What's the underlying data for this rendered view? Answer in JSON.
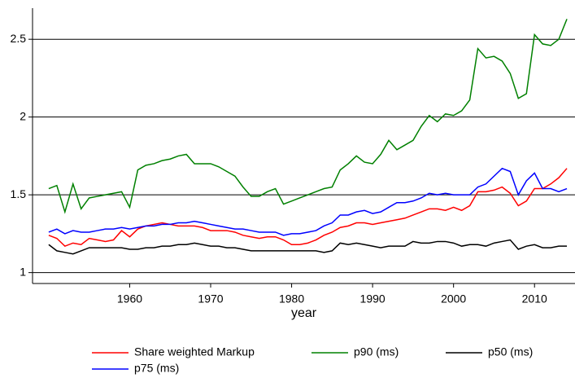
{
  "chart_data": {
    "type": "line",
    "xlabel": "year",
    "x": [
      1950,
      1951,
      1952,
      1953,
      1954,
      1955,
      1956,
      1957,
      1958,
      1959,
      1960,
      1961,
      1962,
      1963,
      1964,
      1965,
      1966,
      1967,
      1968,
      1969,
      1970,
      1971,
      1972,
      1973,
      1974,
      1975,
      1976,
      1977,
      1978,
      1979,
      1980,
      1981,
      1982,
      1983,
      1984,
      1985,
      1986,
      1987,
      1988,
      1989,
      1990,
      1991,
      1992,
      1993,
      1994,
      1995,
      1996,
      1997,
      1998,
      1999,
      2000,
      2001,
      2002,
      2003,
      2004,
      2005,
      2006,
      2007,
      2008,
      2009,
      2010,
      2011,
      2012,
      2013,
      2014
    ],
    "series": [
      {
        "name": "Share weighted Markup",
        "color": "#ff0000",
        "values": [
          1.24,
          1.22,
          1.17,
          1.19,
          1.18,
          1.22,
          1.21,
          1.2,
          1.21,
          1.27,
          1.23,
          1.28,
          1.3,
          1.31,
          1.32,
          1.31,
          1.3,
          1.3,
          1.3,
          1.29,
          1.27,
          1.27,
          1.27,
          1.26,
          1.24,
          1.23,
          1.22,
          1.23,
          1.23,
          1.21,
          1.18,
          1.18,
          1.19,
          1.21,
          1.24,
          1.26,
          1.29,
          1.3,
          1.32,
          1.32,
          1.31,
          1.32,
          1.33,
          1.34,
          1.35,
          1.37,
          1.39,
          1.41,
          1.41,
          1.4,
          1.42,
          1.4,
          1.43,
          1.52,
          1.52,
          1.53,
          1.55,
          1.51,
          1.43,
          1.46,
          1.54,
          1.54,
          1.57,
          1.61,
          1.67
        ]
      },
      {
        "name": "p90 (ms)",
        "color": "#008000",
        "values": [
          1.54,
          1.56,
          1.39,
          1.57,
          1.41,
          1.48,
          1.49,
          1.5,
          1.51,
          1.52,
          1.42,
          1.66,
          1.69,
          1.7,
          1.72,
          1.73,
          1.75,
          1.76,
          1.7,
          1.7,
          1.7,
          1.68,
          1.65,
          1.62,
          1.55,
          1.49,
          1.49,
          1.52,
          1.54,
          1.44,
          1.46,
          1.48,
          1.5,
          1.52,
          1.54,
          1.55,
          1.66,
          1.7,
          1.75,
          1.71,
          1.7,
          1.76,
          1.85,
          1.79,
          1.82,
          1.85,
          1.94,
          2.01,
          1.97,
          2.02,
          2.01,
          2.04,
          2.11,
          2.44,
          2.38,
          2.39,
          2.36,
          2.28,
          2.12,
          2.15,
          2.53,
          2.47,
          2.46,
          2.5,
          2.63
        ]
      },
      {
        "name": "p50 (ms)",
        "color": "#000000",
        "values": [
          1.18,
          1.14,
          1.13,
          1.12,
          1.14,
          1.16,
          1.16,
          1.16,
          1.16,
          1.16,
          1.15,
          1.15,
          1.16,
          1.16,
          1.17,
          1.17,
          1.18,
          1.18,
          1.19,
          1.18,
          1.17,
          1.17,
          1.16,
          1.16,
          1.15,
          1.14,
          1.14,
          1.14,
          1.14,
          1.14,
          1.14,
          1.14,
          1.14,
          1.14,
          1.13,
          1.14,
          1.19,
          1.18,
          1.19,
          1.18,
          1.17,
          1.16,
          1.17,
          1.17,
          1.17,
          1.2,
          1.19,
          1.19,
          1.2,
          1.2,
          1.19,
          1.17,
          1.18,
          1.18,
          1.17,
          1.19,
          1.2,
          1.21,
          1.15,
          1.17,
          1.18,
          1.16,
          1.16,
          1.17,
          1.17
        ]
      },
      {
        "name": "p75 (ms)",
        "color": "#0000ff",
        "values": [
          1.26,
          1.28,
          1.25,
          1.27,
          1.26,
          1.26,
          1.27,
          1.28,
          1.28,
          1.29,
          1.28,
          1.29,
          1.3,
          1.3,
          1.31,
          1.31,
          1.32,
          1.32,
          1.33,
          1.32,
          1.31,
          1.3,
          1.29,
          1.28,
          1.28,
          1.27,
          1.26,
          1.26,
          1.26,
          1.24,
          1.25,
          1.25,
          1.26,
          1.27,
          1.3,
          1.32,
          1.37,
          1.37,
          1.39,
          1.4,
          1.38,
          1.39,
          1.42,
          1.45,
          1.45,
          1.46,
          1.48,
          1.51,
          1.5,
          1.51,
          1.5,
          1.5,
          1.5,
          1.55,
          1.57,
          1.62,
          1.67,
          1.65,
          1.5,
          1.59,
          1.64,
          1.54,
          1.54,
          1.52,
          1.54
        ]
      }
    ],
    "xlim": [
      1948,
      2015
    ],
    "xticks": [
      1960,
      1970,
      1980,
      1990,
      2000,
      2010
    ],
    "ylim": [
      0.93,
      2.7
    ],
    "yticks": [
      1,
      1.5,
      2,
      2.5
    ],
    "grid": true
  }
}
